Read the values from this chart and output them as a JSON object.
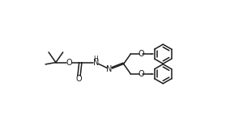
{
  "bg_color": "#ffffff",
  "line_color": "#1a1a1a",
  "line_width": 1.1,
  "fig_width": 3.0,
  "fig_height": 1.69,
  "dpi": 100,
  "xlim": [
    0,
    10
  ],
  "ylim": [
    0,
    5.63
  ]
}
